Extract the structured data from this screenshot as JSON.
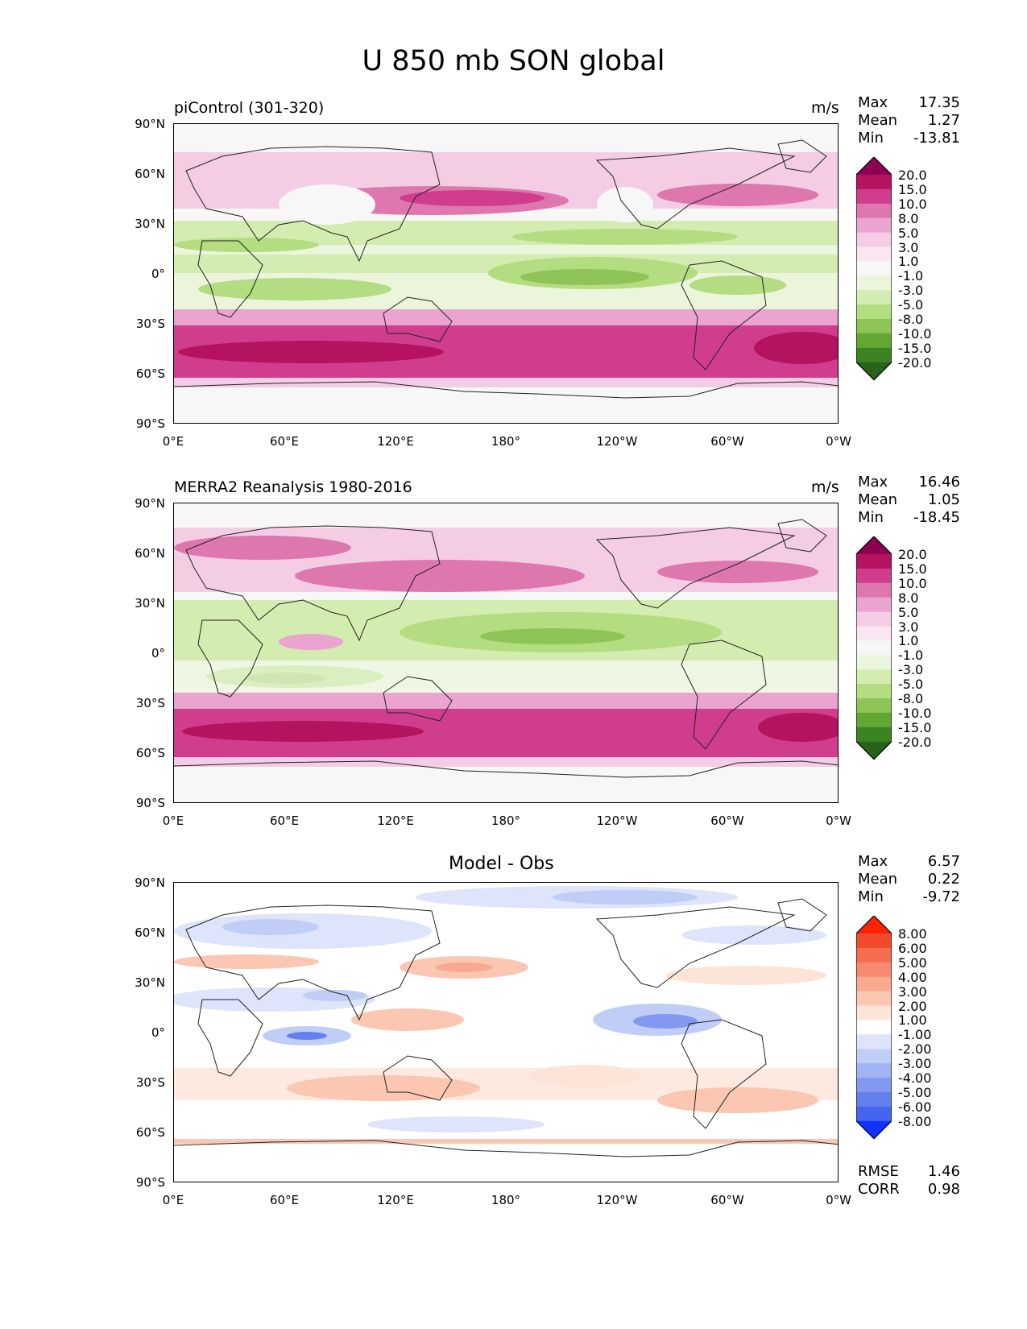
{
  "title": "U 850 mb SON global",
  "panels": [
    {
      "label_left": "piControl (301-320)",
      "label_right": "m/s",
      "stats": [
        {
          "key": "Max",
          "value": "17.35"
        },
        {
          "key": "Mean",
          "value": "1.27"
        },
        {
          "key": "Min",
          "value": "-13.81"
        }
      ],
      "colorbar": {
        "levels": [
          "20.0",
          "15.0",
          "10.0",
          "8.0",
          "5.0",
          "3.0",
          "1.0",
          "-1.0",
          "-3.0",
          "-5.0",
          "-8.0",
          "-10.0",
          "-15.0",
          "-20.0"
        ],
        "colors": [
          "#8e0152",
          "#b4145f",
          "#cf3d8c",
          "#de77ae",
          "#eba4cf",
          "#f4cde4",
          "#f8e6f0",
          "#f7f7f7",
          "#ebf5dc",
          "#d3ecb0",
          "#b4dc80",
          "#8ec457",
          "#62a634",
          "#3c8324",
          "#276419"
        ]
      }
    },
    {
      "label_left": "MERRA2 Reanalysis 1980-2016",
      "label_right": "m/s",
      "stats": [
        {
          "key": "Max",
          "value": "16.46"
        },
        {
          "key": "Mean",
          "value": "1.05"
        },
        {
          "key": "Min",
          "value": "-18.45"
        }
      ],
      "colorbar": {
        "levels": [
          "20.0",
          "15.0",
          "10.0",
          "8.0",
          "5.0",
          "3.0",
          "1.0",
          "-1.0",
          "-3.0",
          "-5.0",
          "-8.0",
          "-10.0",
          "-15.0",
          "-20.0"
        ],
        "colors": [
          "#8e0152",
          "#b4145f",
          "#cf3d8c",
          "#de77ae",
          "#eba4cf",
          "#f4cde4",
          "#f8e6f0",
          "#f7f7f7",
          "#ebf5dc",
          "#d3ecb0",
          "#b4dc80",
          "#8ec457",
          "#62a634",
          "#3c8324",
          "#276419"
        ]
      }
    },
    {
      "label_center": "Model - Obs",
      "stats": [
        {
          "key": "Max",
          "value": "6.57"
        },
        {
          "key": "Mean",
          "value": "0.22"
        },
        {
          "key": "Min",
          "value": "-9.72"
        }
      ],
      "colorbar": {
        "levels": [
          "8.00",
          "6.00",
          "5.00",
          "4.00",
          "3.00",
          "2.00",
          "1.00",
          "-1.00",
          "-2.00",
          "-3.00",
          "-4.00",
          "-5.00",
          "-6.00",
          "-8.00"
        ],
        "colors": [
          "#ff2200",
          "#f04a2a",
          "#f46d4e",
          "#f78a6e",
          "#f9a98f",
          "#fbc6b2",
          "#fde4d8",
          "#ffffff",
          "#dde4fb",
          "#c0cdf7",
          "#a2b3f3",
          "#8399ef",
          "#6380ec",
          "#4466ee",
          "#1133ff"
        ]
      },
      "extra_stats": [
        {
          "key": "RMSE",
          "value": "1.46"
        },
        {
          "key": "CORR",
          "value": "0.98"
        }
      ]
    }
  ],
  "axes": {
    "y_ticks": [
      "90°N",
      "60°N",
      "30°N",
      "0°",
      "30°S",
      "60°S",
      "90°S"
    ],
    "x_ticks": [
      "0°E",
      "60°E",
      "120°E",
      "180°",
      "120°W",
      "60°W",
      "0°W"
    ]
  }
}
